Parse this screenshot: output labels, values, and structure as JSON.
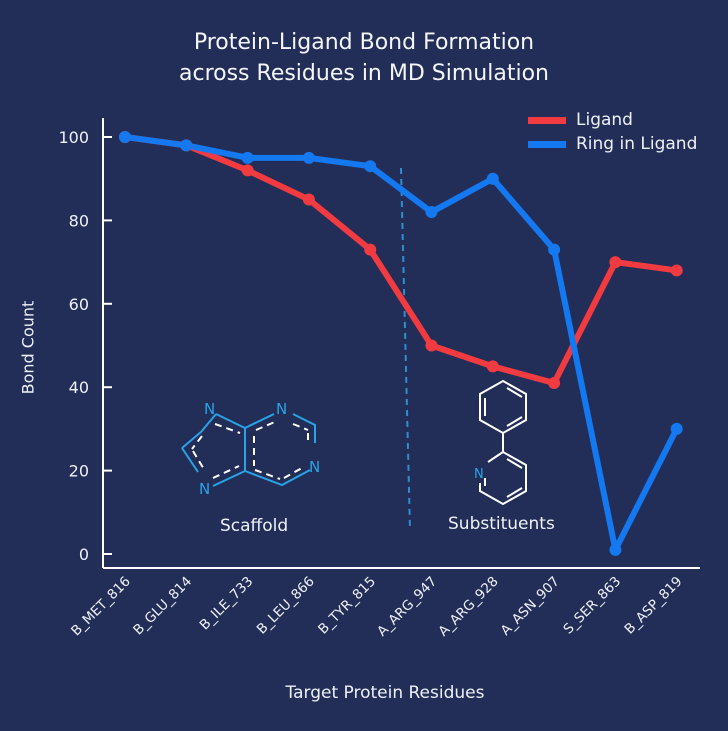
{
  "chart_data": {
    "type": "line",
    "title": [
      "Protein-Ligand Bond Formation",
      "across Residues in MD Simulation"
    ],
    "xlabel": "Target Protein Residues",
    "ylabel": "Bond Count",
    "ylim": [
      0,
      100
    ],
    "yticks": [
      0,
      20,
      40,
      60,
      80,
      100
    ],
    "grid": false,
    "legend_position": "top-right",
    "categories": [
      "B_MET_816",
      "B_GLU_814",
      "B_ILE_733",
      "B_LEU_866",
      "B_TYR_815",
      "A_ARG_947",
      "A_ARG_928",
      "A_ASN_907",
      "S_SER_863",
      "B_ASP_819"
    ],
    "series": [
      {
        "name": "Ligand",
        "color": "#f23b40",
        "values": [
          100,
          98,
          92,
          85,
          73,
          50,
          45,
          41,
          70,
          68
        ]
      },
      {
        "name": "Ring in Ligand",
        "color": "#1479f0",
        "values": [
          100,
          98,
          95,
          95,
          93,
          82,
          90,
          73,
          1,
          30
        ]
      }
    ],
    "divider_after_index": 4,
    "annotations": [
      {
        "label": "Scaffold",
        "atom_labels": [
          "N",
          "N",
          "N",
          "N"
        ]
      },
      {
        "label": "Substituents",
        "atom_labels": [
          "N"
        ]
      }
    ]
  },
  "colors": {
    "background": "#222e57",
    "axis": "#ffffff",
    "divider": "#2e8fd0",
    "scaffold": "#2aa3e6"
  }
}
